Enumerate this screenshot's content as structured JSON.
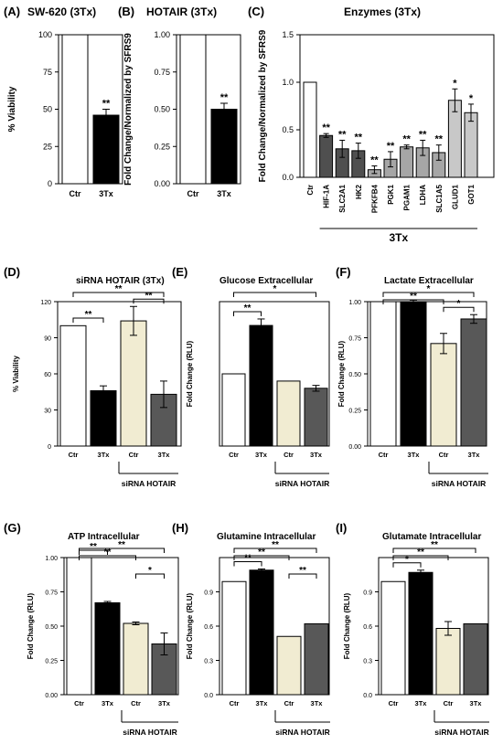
{
  "colors": {
    "white": "#ffffff",
    "black": "#000000",
    "cream": "#f1ecd2",
    "darkgray": "#585858",
    "enzgray": "#4f4f4f",
    "midgray": "#a6a6a6",
    "lightgray": "#c8c8c8"
  },
  "chart_data": [
    {
      "panel": "(A)",
      "title": "SW-620 (3Tx)",
      "type": "bar",
      "categories": [
        "Ctr",
        "3Tx"
      ],
      "values": [
        100,
        46
      ],
      "errors": [
        0,
        4
      ],
      "colors": [
        "white",
        "black"
      ],
      "ylabel": "% Viability",
      "ylim": [
        0,
        100
      ],
      "yticks": [
        "0",
        "25",
        "50",
        "75",
        "100"
      ],
      "stars": [
        "",
        "**"
      ],
      "brackets": [],
      "group_label": "",
      "group_span": [],
      "bottom_label": ""
    },
    {
      "panel": "(B)",
      "title": "HOTAIR (3Tx)",
      "type": "bar",
      "categories": [
        "Ctr",
        "3Tx"
      ],
      "values": [
        1.0,
        0.5
      ],
      "errors": [
        0,
        0.04
      ],
      "colors": [
        "white",
        "black"
      ],
      "ylabel": "Fold  Change/Normalized by SFRS9",
      "ylim": [
        0,
        1.0
      ],
      "yticks": [
        "0.00",
        "0.25",
        "0.50",
        "0.75",
        "1.00"
      ],
      "stars": [
        "",
        "**"
      ],
      "brackets": [],
      "group_label": "",
      "group_span": [],
      "bottom_label": ""
    },
    {
      "panel": "(C)",
      "title": "Enzymes (3Tx)",
      "type": "bar",
      "categories": [
        "Ctr",
        "HIF-1A",
        "SLC2A1",
        "HK2",
        "PFKFB4",
        "PGK1",
        "PGAM1",
        "LDHA",
        "SLC1A5",
        "GLUD1",
        "GOT1"
      ],
      "values": [
        1.0,
        0.44,
        0.3,
        0.28,
        0.08,
        0.19,
        0.32,
        0.31,
        0.26,
        0.81,
        0.68
      ],
      "errors": [
        0,
        0.02,
        0.09,
        0.08,
        0.04,
        0.08,
        0.02,
        0.08,
        0.08,
        0.12,
        0.09
      ],
      "colors": [
        "white",
        "enzgray",
        "enzgray",
        "enzgray",
        "midgray",
        "midgray",
        "midgray",
        "midgray",
        "midgray",
        "lightgray",
        "lightgray"
      ],
      "ylabel": "Fold  Change/Normalized by SFRS9",
      "ylim": [
        0,
        1.5
      ],
      "yticks": [
        "0.0",
        "0.5",
        "1.0",
        "1.5"
      ],
      "stars": [
        "",
        "**",
        "**",
        "**",
        "**",
        "**",
        "**",
        "**",
        "**",
        "*",
        "*"
      ],
      "brackets": [],
      "group_label": "",
      "group_span": [],
      "bottom_label": "3Tx"
    },
    {
      "panel": "(D)",
      "title": "siRNA HOTAIR (3Tx)",
      "type": "bar",
      "categories": [
        "Ctr",
        "3Tx",
        "Ctr",
        "3Tx"
      ],
      "values": [
        100,
        46,
        104,
        43
      ],
      "errors": [
        0,
        4,
        12,
        11
      ],
      "colors": [
        "white",
        "black",
        "cream",
        "darkgray"
      ],
      "ylabel": "% Viability",
      "ylim": [
        0,
        120
      ],
      "yticks": [
        "0",
        "30",
        "60",
        "90",
        "120"
      ],
      "stars": [
        "",
        "",
        "",
        ""
      ],
      "brackets": [
        {
          "from": 0,
          "to": 3,
          "label": "**"
        },
        {
          "from": 2,
          "to": 3,
          "label": "**"
        },
        {
          "from": 0,
          "to": 1,
          "label": "**"
        }
      ],
      "group_label": "siRNA HOTAIR",
      "group_span": [
        2,
        3
      ],
      "bottom_label": ""
    },
    {
      "panel": "(E)",
      "title": "Glucose Extracellular",
      "type": "bar",
      "categories": [
        "Ctr",
        "3Tx",
        "Ctr",
        "3Tx"
      ],
      "values": [
        1.0,
        1.67,
        0.9,
        0.8
      ],
      "errors": [
        0,
        0.09,
        0,
        0.04
      ],
      "colors": [
        "white",
        "black",
        "cream",
        "darkgray"
      ],
      "ylabel": "Fold  Change (RLU)",
      "ylim": [
        0,
        2.0
      ],
      "yticks": [],
      "stars": [
        "",
        "",
        "",
        ""
      ],
      "brackets": [
        {
          "from": 0,
          "to": 3,
          "label": "*"
        },
        {
          "from": 0,
          "to": 1,
          "label": "**"
        }
      ],
      "group_label": "siRNA HOTAIR",
      "group_span": [
        2,
        3
      ],
      "bottom_label": ""
    },
    {
      "panel": "(F)",
      "title": "Lactate Extracellular",
      "type": "bar",
      "categories": [
        "Ctr",
        "3Tx",
        "Ctr",
        "3Tx"
      ],
      "values": [
        1.0,
        1.0,
        0.71,
        0.88
      ],
      "errors": [
        0,
        0.01,
        0.07,
        0.03
      ],
      "colors": [
        "white",
        "black",
        "cream",
        "darkgray"
      ],
      "ylabel": "Fold  Change (RLU)",
      "ylim": [
        0,
        1.0
      ],
      "yticks": [
        "0.00",
        "0.25",
        "0.50",
        "0.75",
        "1.00"
      ],
      "stars": [
        "",
        "",
        "",
        ""
      ],
      "brackets": [
        {
          "from": 0,
          "to": 3,
          "label": "*"
        },
        {
          "from": 2,
          "to": 3,
          "label": "*"
        },
        {
          "from": 0,
          "to": 2,
          "label": "**"
        }
      ],
      "group_label": "siRNA HOTAIR",
      "group_span": [
        2,
        3
      ],
      "bottom_label": ""
    },
    {
      "panel": "(G)",
      "title": "ATP Intracellular",
      "type": "bar",
      "categories": [
        "Ctr",
        "3Tx",
        "Ctr",
        "3Tx"
      ],
      "values": [
        1.0,
        0.67,
        0.52,
        0.37
      ],
      "errors": [
        0,
        0.01,
        0.01,
        0.08
      ],
      "colors": [
        "white",
        "black",
        "cream",
        "darkgray"
      ],
      "ylabel": "Fold  Change (RLU)",
      "ylim": [
        0,
        1.0
      ],
      "yticks": [
        "0.00",
        "0.25",
        "0.50",
        "0.75",
        "1.00"
      ],
      "stars": [
        "",
        "",
        "",
        ""
      ],
      "brackets": [
        {
          "from": 0,
          "to": 3,
          "label": "**"
        },
        {
          "from": 0,
          "to": 2,
          "label": "**"
        },
        {
          "from": 0,
          "to": 1,
          "label": "**"
        },
        {
          "from": 2,
          "to": 3,
          "label": "*"
        }
      ],
      "group_label": "siRNA HOTAIR",
      "group_span": [
        2,
        3
      ],
      "bottom_label": ""
    },
    {
      "panel": "(H)",
      "title": "Glutamine Intracellular",
      "type": "bar",
      "categories": [
        "Ctr",
        "3Tx",
        "Ctr",
        "3Tx"
      ],
      "values": [
        0.99,
        1.09,
        0.51,
        0.62
      ],
      "errors": [
        0,
        0.01,
        0,
        0
      ],
      "colors": [
        "white",
        "black",
        "cream",
        "darkgray"
      ],
      "ylabel": "Fold  Change (RLU)",
      "ylim": [
        0,
        1.2
      ],
      "yticks": [
        "0.0",
        "0.3",
        "0.6",
        "0.9"
      ],
      "stars": [
        "",
        "",
        "",
        ""
      ],
      "brackets": [
        {
          "from": 0,
          "to": 3,
          "label": "**"
        },
        {
          "from": 0,
          "to": 2,
          "label": "**"
        },
        {
          "from": 0,
          "to": 1,
          "label": "**"
        },
        {
          "from": 2,
          "to": 3,
          "label": "**"
        }
      ],
      "group_label": "siRNA HOTAIR",
      "group_span": [
        2,
        3
      ],
      "bottom_label": ""
    },
    {
      "panel": "(I)",
      "title": "Glutamate Intracellular",
      "type": "bar",
      "categories": [
        "Ctr",
        "3Tx",
        "Ctr",
        "3Tx"
      ],
      "values": [
        0.99,
        1.07,
        0.58,
        0.62
      ],
      "errors": [
        0,
        0.02,
        0.06,
        0
      ],
      "colors": [
        "white",
        "black",
        "cream",
        "darkgray"
      ],
      "ylabel": "Fold  Change (RLU)",
      "ylim": [
        0,
        1.2
      ],
      "yticks": [
        "0.0",
        "0.3",
        "0.6",
        "0.9"
      ],
      "stars": [
        "",
        "",
        "",
        ""
      ],
      "brackets": [
        {
          "from": 0,
          "to": 3,
          "label": "**"
        },
        {
          "from": 0,
          "to": 2,
          "label": "**"
        },
        {
          "from": 0,
          "to": 1,
          "label": "*"
        }
      ],
      "group_label": "siRNA HOTAIR",
      "group_span": [
        2,
        3
      ],
      "bottom_label": ""
    }
  ]
}
